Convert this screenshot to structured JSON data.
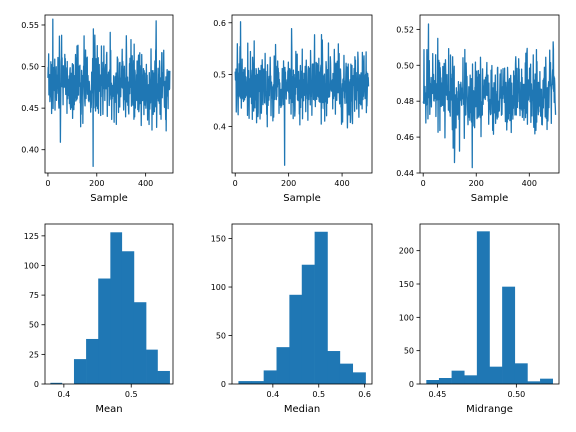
{
  "colors": {
    "series": "#1f77b4",
    "background": "#ffffff",
    "axes": "#000000"
  },
  "chart_data": [
    {
      "type": "line",
      "id": "mean-trace",
      "xlabel": "Sample",
      "xlim": [
        -12,
        512
      ],
      "ylim": [
        0.372,
        0.562
      ],
      "xticks": [
        0,
        200,
        400
      ],
      "yticks": [
        0.4,
        0.45,
        0.5,
        0.55
      ],
      "ytick_labels": [
        "0.40",
        "0.45",
        "0.50",
        "0.55"
      ],
      "n_samples": 500,
      "center": 0.48,
      "y_min": 0.38,
      "y_max": 0.557
    },
    {
      "type": "line",
      "id": "median-trace",
      "xlabel": "Sample",
      "xlim": [
        -12,
        512
      ],
      "ylim": [
        0.31,
        0.615
      ],
      "xticks": [
        0,
        200,
        400
      ],
      "yticks": [
        0.4,
        0.5,
        0.6
      ],
      "ytick_labels": [
        "0.4",
        "0.5",
        "0.6"
      ],
      "n_samples": 500,
      "center": 0.48,
      "y_min": 0.325,
      "y_max": 0.602
    },
    {
      "type": "line",
      "id": "midrange-trace",
      "xlabel": "Sample",
      "xlim": [
        -12,
        512
      ],
      "ylim": [
        0.44,
        0.528
      ],
      "xticks": [
        0,
        200,
        400
      ],
      "yticks": [
        0.44,
        0.46,
        0.48,
        0.5,
        0.52
      ],
      "ytick_labels": [
        "0.44",
        "0.46",
        "0.48",
        "0.50",
        "0.52"
      ],
      "n_samples": 500,
      "center": 0.484,
      "y_min": 0.443,
      "y_max": 0.523
    },
    {
      "type": "bar",
      "id": "mean-histogram",
      "xlabel": "Mean",
      "xlim": [
        0.372,
        0.562
      ],
      "ylim": [
        0,
        135
      ],
      "xticks": [
        0.4,
        0.5
      ],
      "xtick_labels": [
        "0.4",
        "0.5"
      ],
      "yticks": [
        0,
        25,
        50,
        75,
        100,
        125
      ],
      "bin_edges": [
        0.38,
        0.397,
        0.415,
        0.433,
        0.451,
        0.469,
        0.486,
        0.504,
        0.522,
        0.539,
        0.557
      ],
      "counts": [
        1,
        0,
        21,
        38,
        89,
        128,
        112,
        69,
        29,
        11
      ]
    },
    {
      "type": "bar",
      "id": "median-histogram",
      "xlabel": "Median",
      "xlim": [
        0.311,
        0.616
      ],
      "ylim": [
        0,
        165
      ],
      "xticks": [
        0.4,
        0.5,
        0.6
      ],
      "xtick_labels": [
        "0.4",
        "0.5",
        "0.6"
      ],
      "yticks": [
        0,
        50,
        100,
        150
      ],
      "bin_edges": [
        0.325,
        0.353,
        0.38,
        0.408,
        0.436,
        0.463,
        0.491,
        0.519,
        0.546,
        0.574,
        0.602
      ],
      "counts": [
        3,
        3,
        14,
        38,
        92,
        123,
        157,
        34,
        21,
        12
      ]
    },
    {
      "type": "bar",
      "id": "midrange-histogram",
      "xlabel": "Midrange",
      "xlim": [
        0.439,
        0.527
      ],
      "ylim": [
        0,
        240
      ],
      "xticks": [
        0.45,
        0.5
      ],
      "xtick_labels": [
        "0.45",
        "0.50"
      ],
      "yticks": [
        0,
        50,
        100,
        150,
        200
      ],
      "bin_edges": [
        0.443,
        0.451,
        0.459,
        0.467,
        0.475,
        0.483,
        0.491,
        0.499,
        0.507,
        0.515,
        0.523
      ],
      "counts": [
        6,
        9,
        20,
        13,
        229,
        26,
        146,
        31,
        4,
        8
      ]
    }
  ]
}
